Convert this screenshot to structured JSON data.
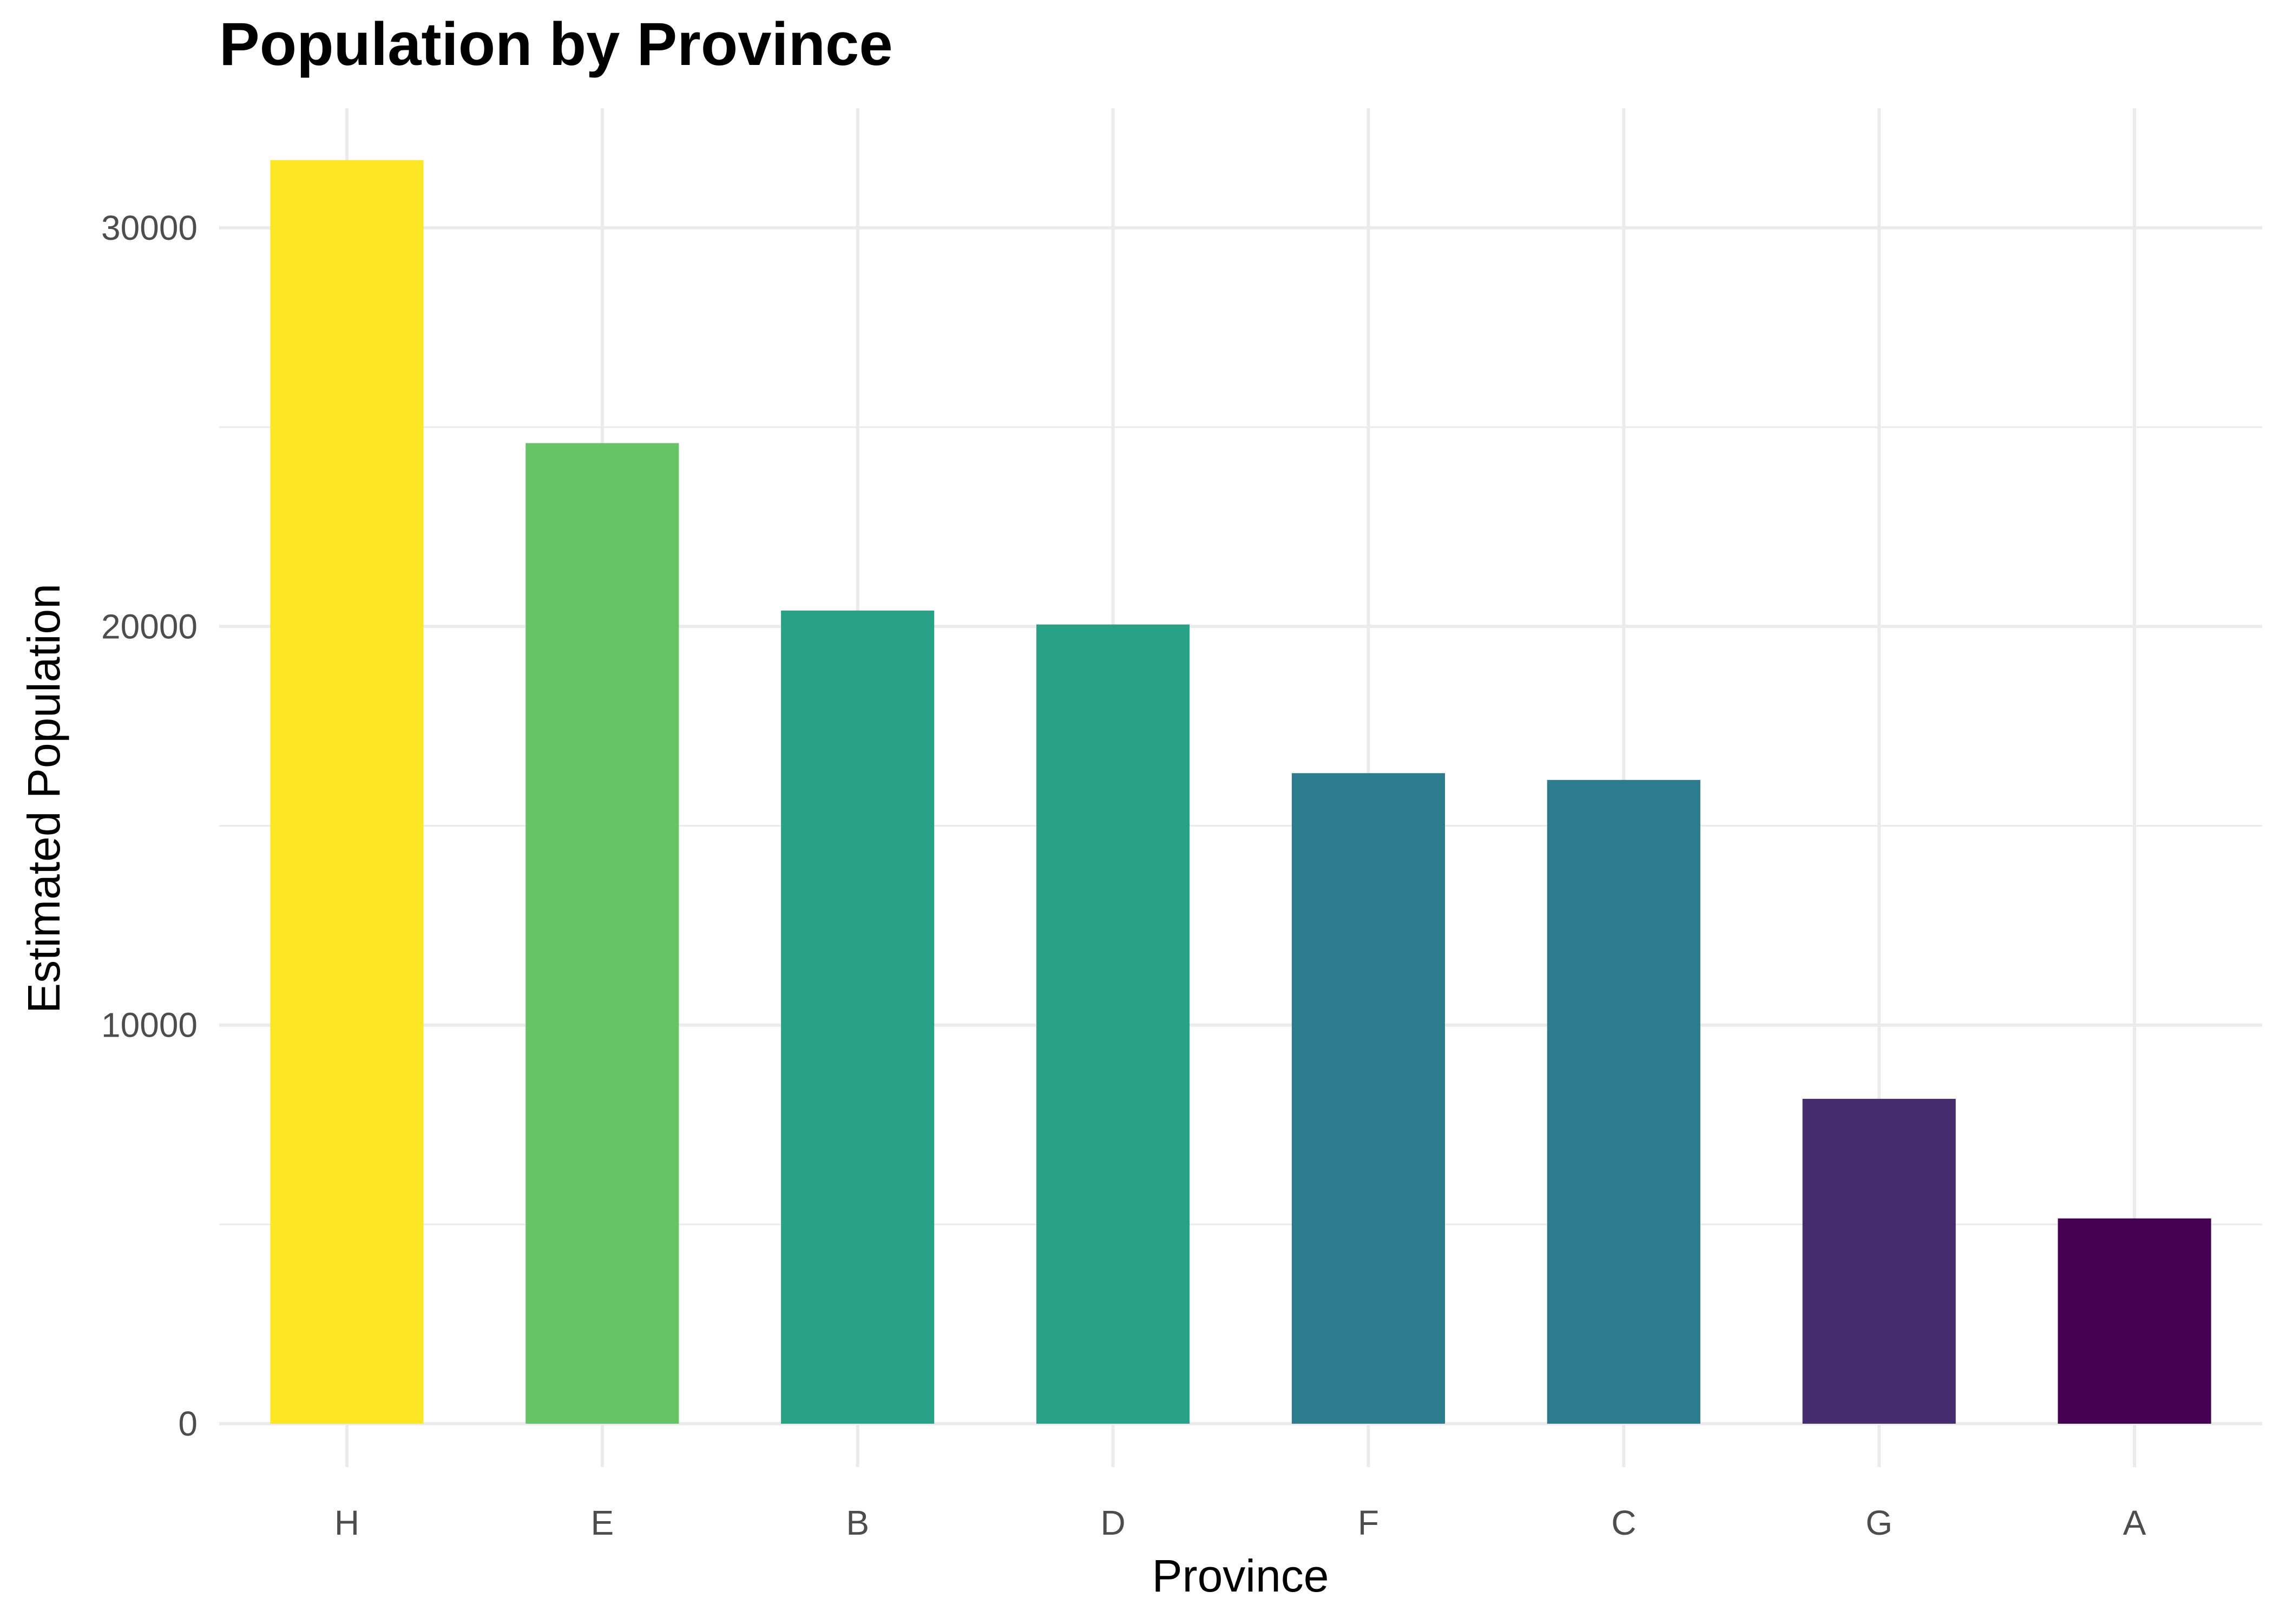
{
  "chart_data": {
    "type": "bar",
    "title": "Population by Province",
    "xlabel": "Province",
    "ylabel": "Estimated Population",
    "categories": [
      "H",
      "E",
      "B",
      "D",
      "F",
      "C",
      "G",
      "A"
    ],
    "values": [
      31700,
      24600,
      20400,
      20050,
      16320,
      16150,
      8150,
      5150
    ],
    "colors": [
      "#FDE725",
      "#66C366",
      "#29A186",
      "#29A186",
      "#2C7C8E",
      "#2C7C8E",
      "#442C6E",
      "#440154"
    ],
    "ylim": [
      0,
      33000
    ],
    "yticks": [
      0,
      10000,
      20000,
      30000
    ],
    "yticklabels": [
      "0",
      "10000",
      "20000",
      "30000"
    ],
    "grid": true,
    "legend": "none"
  }
}
